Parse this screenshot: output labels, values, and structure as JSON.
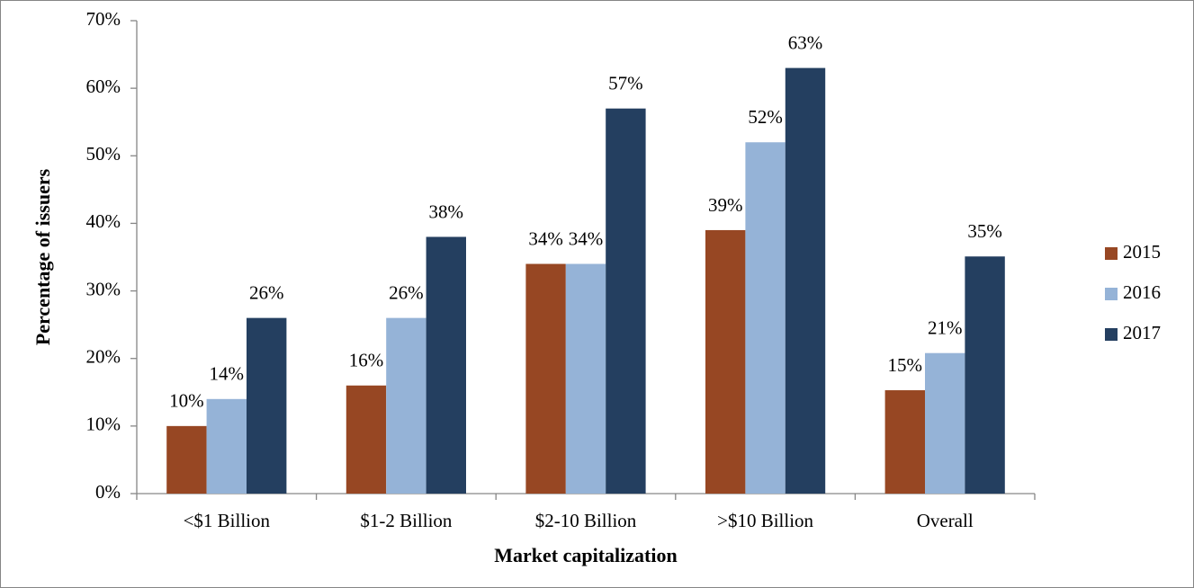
{
  "chart_data": {
    "type": "bar",
    "x_label": "Market capitalization",
    "y_label": "Percentage of issuers",
    "categories": [
      "<$1 Billion",
      "$1-2 Billion",
      "$2-10 Billion",
      ">$10 Billion",
      "Overall"
    ],
    "series": [
      {
        "name": "2015",
        "color": "#974723",
        "values": [
          10,
          16,
          34,
          39,
          15.3
        ],
        "value_labels": [
          "10%",
          "16%",
          "34%",
          "39%",
          "15%"
        ]
      },
      {
        "name": "2016",
        "color": "#95b3d7",
        "values": [
          14,
          26,
          34,
          52,
          20.8
        ],
        "value_labels": [
          "14%",
          "26%",
          "34%",
          "52%",
          "21%"
        ]
      },
      {
        "name": "2017",
        "color": "#243f60",
        "values": [
          26,
          38,
          57,
          63,
          35.1
        ],
        "value_labels": [
          "26%",
          "38%",
          "57%",
          "63%",
          "35%"
        ]
      }
    ],
    "ylim": [
      0,
      70
    ],
    "yticks": [
      {
        "value": 0,
        "label": "0%"
      },
      {
        "value": 10,
        "label": "10%"
      },
      {
        "value": 20,
        "label": "20%"
      },
      {
        "value": 30,
        "label": "30%"
      },
      {
        "value": 40,
        "label": "40%"
      },
      {
        "value": 50,
        "label": "50%"
      },
      {
        "value": 60,
        "label": "60%"
      },
      {
        "value": 70,
        "label": "70%"
      }
    ],
    "grid": false,
    "legend": "right"
  }
}
